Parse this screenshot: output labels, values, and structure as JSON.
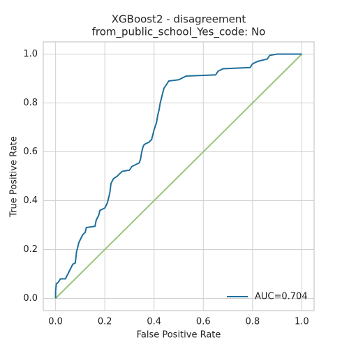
{
  "chart_data": {
    "type": "line",
    "title": [
      "XGBoost2 - disagreement",
      "from_public_school_Yes_code: No"
    ],
    "xlabel": "False Positive Rate",
    "ylabel": "True Positive Rate",
    "xlim": [
      -0.05,
      1.05
    ],
    "ylim": [
      -0.05,
      1.05
    ],
    "xticks": [
      {
        "value": 0,
        "label": "0.0"
      },
      0.2,
      0.4,
      0.6,
      0.8,
      {
        "value": 1,
        "label": "1.0"
      }
    ],
    "yticks": [
      {
        "value": 0,
        "label": "0.0"
      },
      0.2,
      0.4,
      0.6,
      0.8,
      {
        "value": 1,
        "label": "1.0"
      }
    ],
    "grid": true,
    "legend": "lower right",
    "series": [
      {
        "name": "AUC=0.704",
        "color": "#1f6f9c",
        "x": [
          0,
          0,
          0.003,
          0.01,
          0.02,
          0.04,
          0.05,
          0.06,
          0.07,
          0.08,
          0.085,
          0.09,
          0.095,
          0.1,
          0.11,
          0.12,
          0.125,
          0.16,
          0.165,
          0.175,
          0.18,
          0.2,
          0.21,
          0.215,
          0.22,
          0.225,
          0.235,
          0.25,
          0.27,
          0.3,
          0.31,
          0.34,
          0.345,
          0.35,
          0.355,
          0.36,
          0.38,
          0.39,
          0.4,
          0.41,
          0.415,
          0.42,
          0.425,
          0.43,
          0.435,
          0.44,
          0.45,
          0.46,
          0.5,
          0.53,
          0.65,
          0.66,
          0.68,
          0.79,
          0.8,
          0.82,
          0.86,
          0.87,
          0.9,
          1
        ],
        "values": [
          0,
          0.03,
          0.06,
          0.065,
          0.08,
          0.08,
          0.1,
          0.12,
          0.14,
          0.145,
          0.19,
          0.21,
          0.23,
          0.24,
          0.26,
          0.27,
          0.29,
          0.295,
          0.32,
          0.34,
          0.36,
          0.37,
          0.39,
          0.41,
          0.43,
          0.47,
          0.49,
          0.5,
          0.52,
          0.525,
          0.54,
          0.555,
          0.57,
          0.6,
          0.62,
          0.63,
          0.64,
          0.65,
          0.69,
          0.72,
          0.75,
          0.77,
          0.8,
          0.82,
          0.84,
          0.86,
          0.875,
          0.89,
          0.895,
          0.91,
          0.915,
          0.93,
          0.94,
          0.945,
          0.96,
          0.97,
          0.98,
          0.995,
          1,
          1
        ]
      },
      {
        "color": "#9bc47a",
        "x": [
          0,
          1
        ],
        "values": [
          0,
          1
        ]
      }
    ]
  }
}
